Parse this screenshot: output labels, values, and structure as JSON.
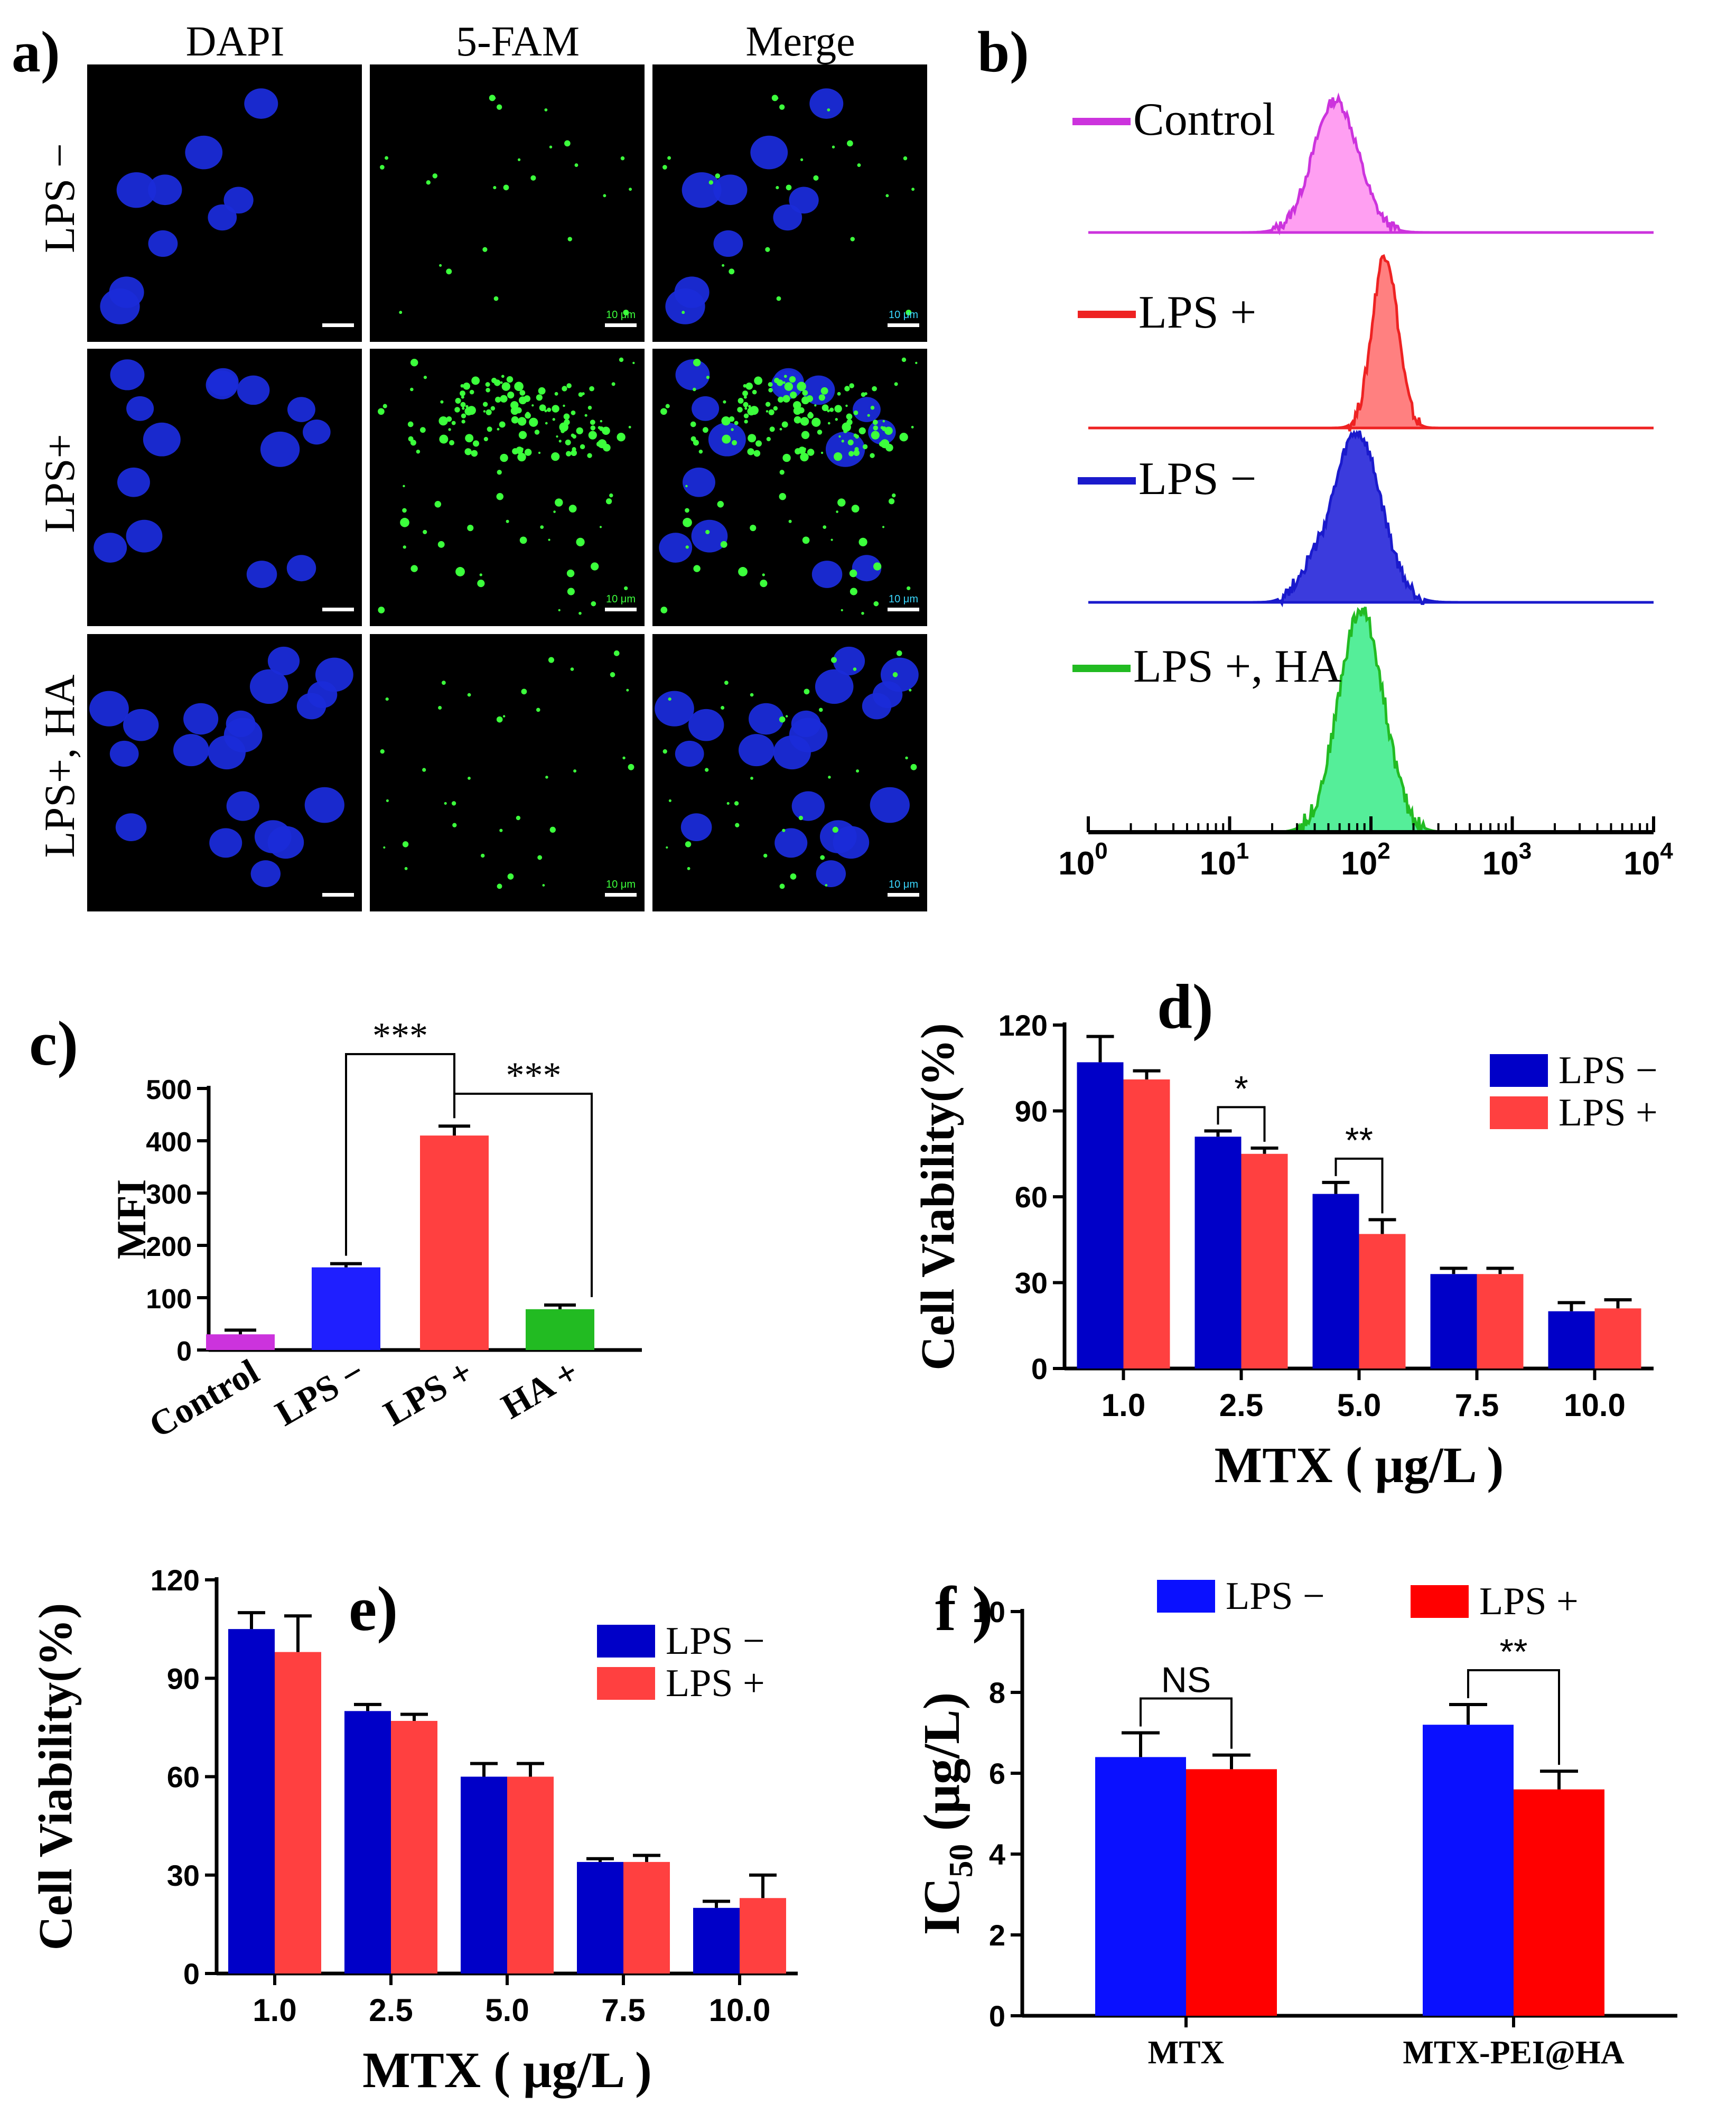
{
  "colors": {
    "blue": "#0000c8",
    "red": "#ff4040",
    "magenta": "#cc33dd",
    "green": "#22bb22",
    "bright_blue": "#0a10ff",
    "bright_red": "#ff0000",
    "cell_blue": "#1a2bd8",
    "dot_green": "#3cff3c"
  },
  "panel_a": {
    "label": "a)",
    "columns": [
      "DAPI",
      "5-FAM",
      "Merge"
    ],
    "rows": [
      "LPS −",
      "LPS+",
      "LPS+, HA"
    ],
    "scale_label": "10 μm"
  },
  "panel_b": {
    "label": "b)",
    "legend": [
      "Control",
      "LPS +",
      "LPS −",
      "LPS +, HA"
    ],
    "axis_base": "10",
    "exponents": [
      "0",
      "1",
      "2",
      "3",
      "4"
    ]
  },
  "chart_data": [
    {
      "id": "c",
      "label": "c)",
      "type": "bar",
      "ylabel": "MFI",
      "ylim": [
        0,
        500
      ],
      "yticks": [
        "0",
        "100",
        "200",
        "300",
        "400",
        "500"
      ],
      "categories": [
        "Control",
        "LPS −",
        "LPS +",
        "HA +"
      ],
      "values": [
        30,
        158,
        410,
        78
      ],
      "errors": [
        8,
        7,
        18,
        8
      ],
      "bar_colors": [
        "#cc33dd",
        "#1f1fff",
        "#ff4040",
        "#22bb22"
      ],
      "annotations": [
        {
          "from": "LPS −",
          "to": "LPS +",
          "text": "***"
        },
        {
          "from": "LPS +",
          "to": "HA +",
          "text": "***"
        }
      ]
    },
    {
      "id": "d",
      "label": "d)",
      "type": "bar",
      "xlabel": "MTX ( μg/L )",
      "ylabel": "Cell Viability(%)",
      "ylim": [
        0,
        120
      ],
      "yticks": [
        "0",
        "30",
        "60",
        "90",
        "120"
      ],
      "categories": [
        "1.0",
        "2.5",
        "5.0",
        "7.5",
        "10.0"
      ],
      "series": [
        {
          "name": "LPS −",
          "values": [
            107,
            81,
            61,
            33,
            20
          ],
          "errors": [
            9,
            2,
            4,
            2,
            3
          ]
        },
        {
          "name": "LPS +",
          "values": [
            101,
            75,
            47,
            33,
            21
          ],
          "errors": [
            3,
            2,
            5,
            2,
            3
          ]
        }
      ],
      "annotations": [
        {
          "category": "2.5",
          "text": "*"
        },
        {
          "category": "5.0",
          "text": "**"
        }
      ]
    },
    {
      "id": "e",
      "label": "e)",
      "type": "bar",
      "xlabel": "MTX ( μg/L )",
      "ylabel": "Cell Viability(%)",
      "ylim": [
        0,
        120
      ],
      "yticks": [
        "0",
        "30",
        "60",
        "90",
        "120"
      ],
      "categories": [
        "1.0",
        "2.5",
        "5.0",
        "7.5",
        "10.0"
      ],
      "series": [
        {
          "name": "LPS −",
          "values": [
            105,
            80,
            60,
            34,
            20
          ],
          "errors": [
            5,
            2,
            4,
            1,
            2
          ]
        },
        {
          "name": "LPS +",
          "values": [
            98,
            77,
            60,
            34,
            23
          ],
          "errors": [
            11,
            2,
            4,
            2,
            7
          ]
        }
      ]
    },
    {
      "id": "f",
      "label": "f )",
      "type": "bar",
      "ylabel": "IC",
      "ylabel_sub": "50",
      "ylabel_unit": " (μg/L)",
      "ylim": [
        0,
        10
      ],
      "yticks": [
        "0",
        "2",
        "4",
        "6",
        "8",
        "10"
      ],
      "categories": [
        "MTX",
        "MTX-PEI@HA"
      ],
      "series": [
        {
          "name": "LPS −",
          "values": [
            6.4,
            7.2
          ],
          "errors": [
            0.6,
            0.5
          ]
        },
        {
          "name": "LPS +",
          "values": [
            6.1,
            5.6
          ],
          "errors": [
            0.35,
            0.45
          ]
        }
      ],
      "annotations": [
        {
          "category": "MTX",
          "text": "NS"
        },
        {
          "category": "MTX-PEI@HA",
          "text": "**"
        }
      ]
    }
  ]
}
